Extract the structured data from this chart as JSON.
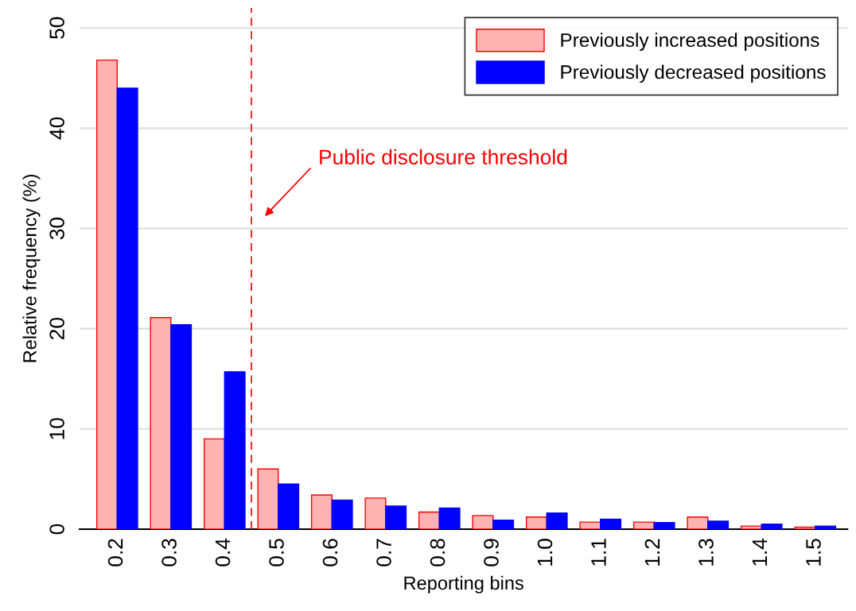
{
  "chart_data": {
    "type": "bar",
    "xlabel": "Reporting bins",
    "ylabel": "Relative frequency (%)",
    "x": [
      0.2,
      0.3,
      0.4,
      0.5,
      0.6,
      0.7,
      0.8,
      0.9,
      1.0,
      1.1,
      1.2,
      1.3,
      1.4,
      1.5
    ],
    "xlim": [
      0.13,
      1.56
    ],
    "xticks": [
      0.2,
      0.3,
      0.4,
      0.5,
      0.6,
      0.7,
      0.8,
      0.9,
      {
        "value": 1.0,
        "label": "1.0"
      },
      1.1,
      1.2,
      1.3,
      1.4,
      1.5
    ],
    "ylim": [
      0,
      52
    ],
    "yticks": [
      0,
      10,
      20,
      30,
      40,
      50
    ],
    "series": [
      {
        "name": "Previously increased positions",
        "color": "#ffb3b3",
        "values": [
          46.8,
          21.1,
          9.0,
          6.0,
          3.4,
          3.1,
          1.7,
          1.35,
          1.2,
          0.7,
          0.7,
          1.2,
          0.3,
          0.2
        ]
      },
      {
        "name": "Previously decreased positions",
        "color": "#0000ff",
        "values": [
          44.0,
          20.4,
          15.7,
          4.5,
          2.9,
          2.3,
          2.1,
          0.9,
          1.6,
          1.0,
          0.65,
          0.8,
          0.5,
          0.3
        ]
      }
    ],
    "ref_lines": [
      {
        "axis": "x",
        "value": 0.45,
        "color": "#ff0000",
        "line_style": "dashed"
      }
    ],
    "annotations": [
      "Public disclosure threshold"
    ],
    "grid": "y",
    "legend": "top right"
  }
}
